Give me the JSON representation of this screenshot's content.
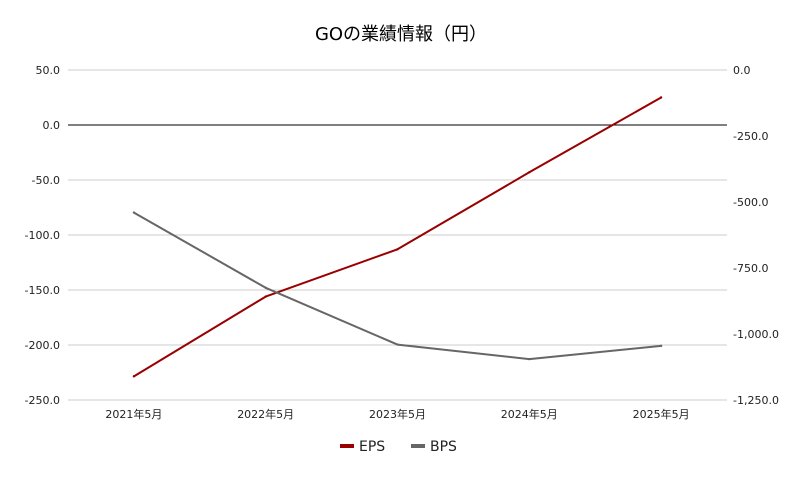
{
  "chart_data": {
    "type": "line",
    "title": "GOの業績情報（円）",
    "categories": [
      "2021年5月",
      "2022年5月",
      "2023年5月",
      "2024年5月",
      "2025年5月"
    ],
    "series": [
      {
        "name": "EPS",
        "axis": "left",
        "color": "#990000",
        "values": [
          -228.5,
          -156.0,
          -113.0,
          -43.0,
          25.0
        ]
      },
      {
        "name": "BPS",
        "axis": "right",
        "color": "#666666",
        "values": [
          -540.0,
          -825.0,
          -1040.0,
          -1095.0,
          -1045.0
        ]
      }
    ],
    "y_left": {
      "min": -250,
      "max": 50,
      "step": 50,
      "tick_labels": [
        "50.0",
        "0.0",
        "-50.0",
        "-100.0",
        "-150.0",
        "-200.0",
        "-250.0"
      ]
    },
    "y_right": {
      "min": -1250,
      "max": 0,
      "step": 250,
      "tick_labels": [
        "0.0",
        "-250.0",
        "-500.0",
        "-750.0",
        "-1,000.0",
        "-1,250.0"
      ]
    },
    "grid": true,
    "legend_position": "bottom"
  }
}
